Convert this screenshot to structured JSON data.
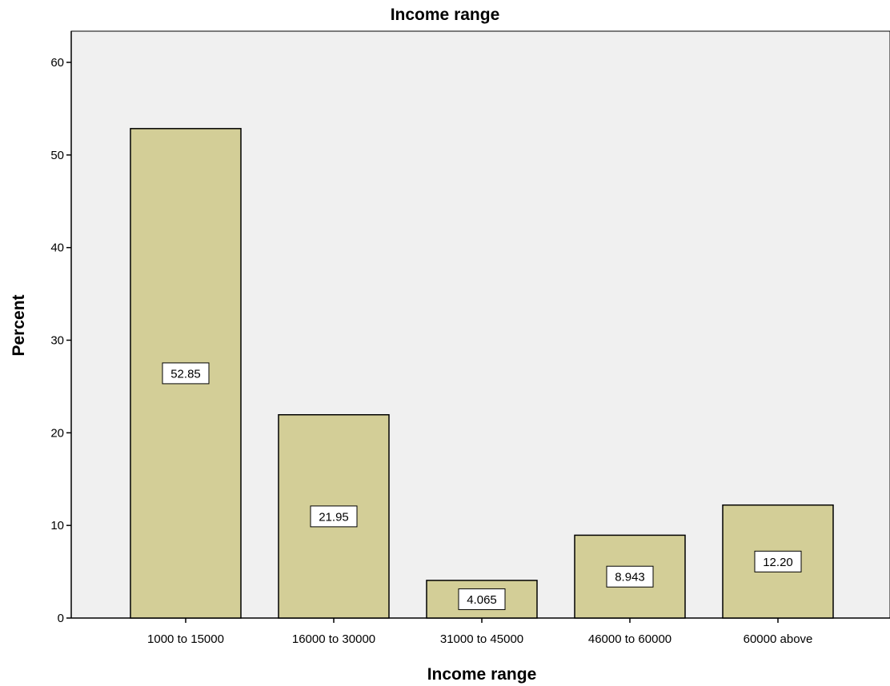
{
  "chart_data": {
    "type": "bar",
    "title": "Income range",
    "xlabel": "Income range",
    "ylabel": "Percent",
    "categories": [
      "1000 to 15000",
      "16000 to 30000",
      "31000 to 45000",
      "46000 to 60000",
      "60000 above"
    ],
    "values": [
      52.85,
      21.95,
      4.065,
      8.943,
      12.2
    ],
    "data_labels": [
      "52.85",
      "21.95",
      "4.065",
      "8.943",
      "12.20"
    ],
    "yticks": [
      "0",
      "10",
      "20",
      "30",
      "40",
      "50",
      "60"
    ],
    "ylim": [
      0,
      60
    ],
    "grid": false,
    "legend": false,
    "colors": {
      "plot_background": "#f0f0f0",
      "bar_fill": "#d3ce97",
      "bar_stroke": "#000000",
      "label_box_fill": "#ffffff"
    }
  }
}
